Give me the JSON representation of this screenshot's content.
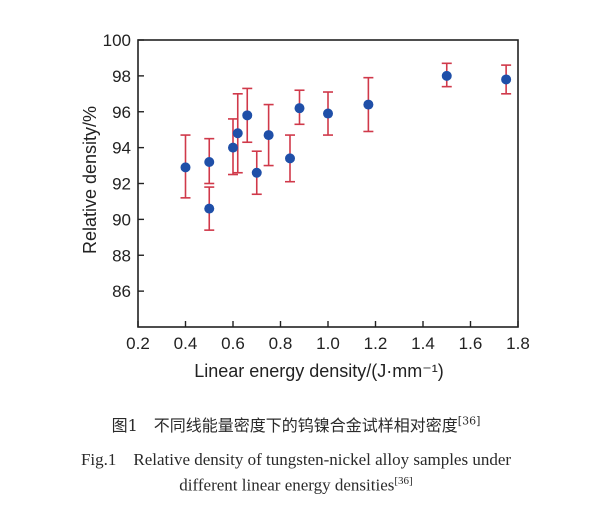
{
  "chart_data": {
    "type": "scatter",
    "xlabel": "Linear energy density/(J·mm⁻¹)",
    "ylabel": "Relative density/%",
    "xlim": [
      0.2,
      1.8
    ],
    "ylim": [
      84,
      100
    ],
    "xticks": [
      "0.2",
      "0.4",
      "0.6",
      "0.8",
      "1.0",
      "1.2",
      "1.4",
      "1.6",
      "1.8"
    ],
    "yticks": [
      "86",
      "88",
      "90",
      "92",
      "94",
      "96",
      "98",
      "100"
    ],
    "grid": false,
    "marker_color": "#1f4fa8",
    "errorbar_color": "#d0394a",
    "series": [
      {
        "points": [
          {
            "x": 0.4,
            "y": 92.9,
            "low": 91.2,
            "high": 94.7
          },
          {
            "x": 0.5,
            "y": 93.2,
            "low": 92.0,
            "high": 94.5
          },
          {
            "x": 0.5,
            "y": 90.6,
            "low": 89.4,
            "high": 91.8
          },
          {
            "x": 0.6,
            "y": 94.0,
            "low": 92.5,
            "high": 95.6
          },
          {
            "x": 0.62,
            "y": 94.8,
            "low": 92.6,
            "high": 97.0
          },
          {
            "x": 0.66,
            "y": 95.8,
            "low": 94.3,
            "high": 97.3
          },
          {
            "x": 0.7,
            "y": 92.6,
            "low": 91.4,
            "high": 93.8
          },
          {
            "x": 0.75,
            "y": 94.7,
            "low": 93.0,
            "high": 96.4
          },
          {
            "x": 0.84,
            "y": 93.4,
            "low": 92.1,
            "high": 94.7
          },
          {
            "x": 0.88,
            "y": 96.2,
            "low": 95.3,
            "high": 97.2
          },
          {
            "x": 1.0,
            "y": 95.9,
            "low": 94.7,
            "high": 97.1
          },
          {
            "x": 1.17,
            "y": 96.4,
            "low": 94.9,
            "high": 97.9
          },
          {
            "x": 1.5,
            "y": 98.0,
            "low": 97.4,
            "high": 98.7
          },
          {
            "x": 1.75,
            "y": 97.8,
            "low": 97.0,
            "high": 98.6
          }
        ]
      }
    ]
  },
  "caption": {
    "cn": "图1　不同线能量密度下的钨镍合金试样相对密度",
    "cn_ref": "[36]",
    "en_line1": "Fig.1　Relative density of tungsten-nickel alloy samples under",
    "en_line2": "different linear energy densities",
    "en_ref": "[36]"
  }
}
